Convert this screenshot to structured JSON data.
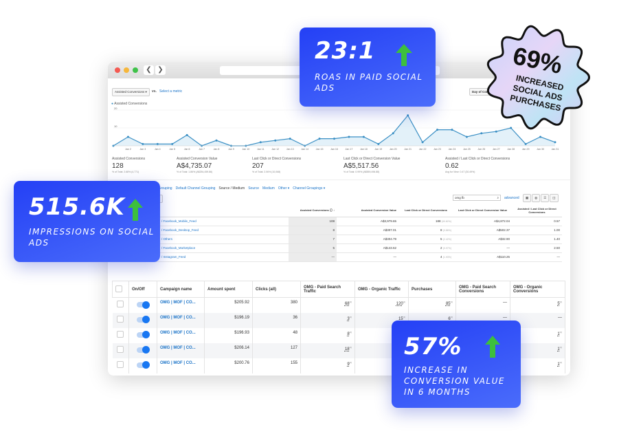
{
  "window": {
    "nav_back": "❮",
    "nav_forward": "❯"
  },
  "analytics": {
    "metric_select": "Assisted Conversions",
    "vs": "vs.",
    "select_metric": "Select a metric",
    "day_button": "Day of Convers",
    "legend": "Assisted Conversions",
    "summary": [
      {
        "label": "Assisted Conversions",
        "value": "128",
        "sub": "% of Total: 2.68% (4,771)"
      },
      {
        "label": "Assisted Conversion Value",
        "value": "A$4,735.07",
        "sub": "% of Total: 1.86% (A$254,459.86)"
      },
      {
        "label": "Last Click or Direct Conversions",
        "value": "207",
        "sub": "% of Total: 2.06% (10,068)"
      },
      {
        "label": "Last Click or Direct Conversion Value",
        "value": "A$5,517.56",
        "sub": "% of Total: 0.99% (A$559,496.88)"
      },
      {
        "label": "Assisted / Last Click or Direct Conversions",
        "value": "0.62",
        "sub": "Avg for View: 0.47 (30.49%)"
      }
    ],
    "tabs": [
      "Grouping",
      "Default Channel Grouping",
      "Source / Medium",
      "Source",
      "Medium",
      "Other ▾",
      "Channel Groupings ▾"
    ],
    "secondary": "sion ▾",
    "search_value": "omg fb",
    "advanced": "advanced",
    "columns": [
      "Assisted Conversions",
      "Assisted Conversion Value",
      "Last Click or Direct Conversions",
      "Last Click or Direct Conversion Value",
      "Assisted / Last Click or Direct Conversions"
    ],
    "rows": [
      {
        "src": "Facebook_Mobile_Feed",
        "ac": "108",
        "acv": "A$3,979.65",
        "lc": "188",
        "lcp": "(90.82%)",
        "lcv": "A$4,872.04",
        "ratio": "0.57"
      },
      {
        "src": "Facebook_Desktop_Feed",
        "ac": "8",
        "acv": "A$307.01",
        "lc": "8",
        "lcp": "(3.86%)",
        "lcv": "A$502.37",
        "ratio": "1.00"
      },
      {
        "src": "Others",
        "ac": "7",
        "acv": "A$304.79",
        "lc": "5",
        "lcp": "(2.42%)",
        "lcv": "A$32.90",
        "ratio": "1.40"
      },
      {
        "src": "Facebook_Marketplace",
        "ac": "5",
        "acv": "A$143.62",
        "lc": "2",
        "lcp": "(0.97%)",
        "lcv": "—",
        "ratio": "2.50"
      },
      {
        "src": "Instagram_Feed",
        "ac": "—",
        "acv": "—",
        "lc": "4",
        "lcp": "(1.93%)",
        "lcv": "A$110.25",
        "ratio": "—"
      }
    ]
  },
  "chart_data": {
    "type": "area",
    "series": [
      {
        "name": "Assisted Conversions",
        "values": [
          0,
          5,
          1,
          1,
          1,
          6,
          0,
          3,
          0,
          0,
          2,
          3,
          4,
          0,
          4,
          4,
          5,
          5,
          1,
          7,
          17,
          2,
          9,
          9,
          5,
          7,
          8,
          10,
          1,
          5,
          2
        ]
      }
    ],
    "categories": [
      "Jan 1",
      "Jan 2",
      "Jan 3",
      "Jan 4",
      "Jan 5",
      "Jan 6",
      "Jan 7",
      "Jan 8",
      "Jan 9",
      "Jan 10",
      "Jan 11",
      "Jan 12",
      "Jan 13",
      "Jan 14",
      "Jan 15",
      "Jan 16",
      "Jan 17",
      "Jan 18",
      "Jan 19",
      "Jan 20",
      "Jan 21",
      "Jan 22",
      "Jan 23",
      "Jan 24",
      "Jan 25",
      "Jan 26",
      "Jan 27",
      "Jan 28",
      "Jan 29",
      "Jan 30",
      "Jan 31"
    ],
    "yticks": [
      "10",
      "20"
    ],
    "ylim": [
      0,
      20
    ],
    "grid": true,
    "color": "#3a8fc4"
  },
  "ads": {
    "columns": [
      "On/Off",
      "Campaign name",
      "Amount spent",
      "Clicks (all)",
      "OMG - Paid Search Traffic",
      "OMG - Organic Traffic",
      "Purchases",
      "OMG - Paid Search Conversions",
      "OMG - Organic Conversions"
    ],
    "rows": [
      {
        "name": "OMG | MOF | CO...",
        "spent": "$205.92",
        "clicks": "380",
        "pst": "68",
        "ot": "120",
        "pur": "85",
        "psc": "—",
        "oc": "5"
      },
      {
        "name": "OMG | MOF | CO...",
        "spent": "$196.19",
        "clicks": "36",
        "pst": "3",
        "ot": "15",
        "pur": "6",
        "psc": "—",
        "oc": "—"
      },
      {
        "name": "OMG | MOF | CO...",
        "spent": "$196.93",
        "clicks": "48",
        "pst": "8",
        "ot": "",
        "pur": "",
        "psc": "",
        "oc": "1"
      },
      {
        "name": "OMG | MOF | CO...",
        "spent": "$206.14",
        "clicks": "127",
        "pst": "18",
        "ot": "",
        "pur": "",
        "psc": "",
        "oc": "1"
      },
      {
        "name": "OMG | MOF | CO...",
        "spent": "$200.76",
        "clicks": "155",
        "pst": "9",
        "ot": "",
        "pur": "",
        "psc": "",
        "oc": "1"
      }
    ]
  },
  "cards": {
    "roas": {
      "value": "23:1",
      "label": "ROAS in paid social ads"
    },
    "impressions": {
      "value": "515.6K",
      "label": "Impressions on social ads"
    },
    "conversion": {
      "value": "57%",
      "label": "Increase in conversion value in 6 months"
    },
    "badge": {
      "value": "69%",
      "label": "Increased social ads purchases"
    }
  },
  "colors": {
    "card": "#2f4ef7",
    "arrow": "#3dbf3d",
    "link": "#1a73c8",
    "toggle": "#1877f2"
  }
}
